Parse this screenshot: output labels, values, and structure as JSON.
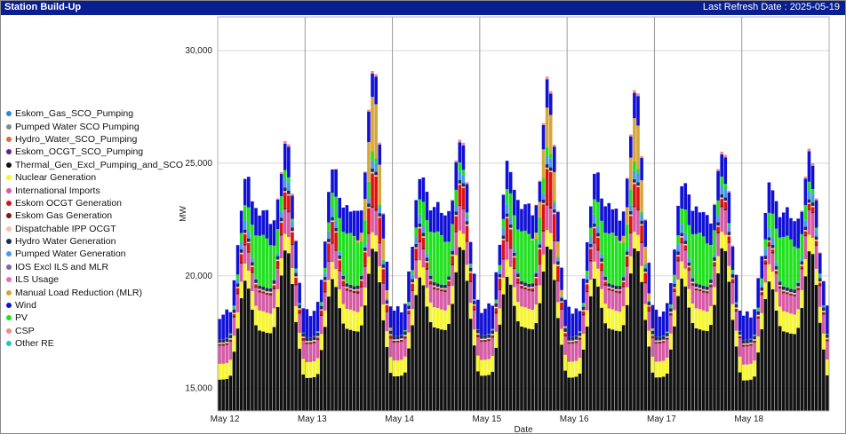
{
  "header": {
    "title": "Station Build-Up",
    "refresh_label": "Last Refresh Date : 2025-05-19"
  },
  "chart_data": {
    "type": "bar",
    "stacked": true,
    "xlabel": "Date",
    "ylabel": "MW",
    "ylim": [
      14000,
      31500
    ],
    "yticks": [
      15000,
      20000,
      25000,
      30000
    ],
    "ytick_labels": [
      "15,000",
      "20,000",
      "25,000",
      "30,000"
    ],
    "day_labels": [
      "May 12",
      "May 13",
      "May 14",
      "May 15",
      "May 16",
      "May 17",
      "May 18"
    ],
    "bars_per_day": 24,
    "grid": true,
    "legend_position": "left",
    "legend": [
      {
        "name": "Eskom_Gas_SCO_Pumping",
        "color": "#2a8ad6"
      },
      {
        "name": "Pumped Water SCO Pumping",
        "color": "#8a8a8a"
      },
      {
        "name": "Hydro_Water_SCO_Pumping",
        "color": "#e06a3a"
      },
      {
        "name": "Eskom_OCGT_SCO_Pumping",
        "color": "#6a1f8a"
      },
      {
        "name": "Thermal_Gen_Excl_Pumping_and_SCO",
        "color": "#111111"
      },
      {
        "name": "Nuclear Generation",
        "color": "#f5f532"
      },
      {
        "name": "International Imports",
        "color": "#d65aa6"
      },
      {
        "name": "Eskom OCGT Generation",
        "color": "#e01010"
      },
      {
        "name": "Eskom Gas Generation",
        "color": "#7a1a1a"
      },
      {
        "name": "Dispatchable IPP OCGT",
        "color": "#f2c2a8"
      },
      {
        "name": "Hydro Water Generation",
        "color": "#1a2a5a"
      },
      {
        "name": "Pumped Water Generation",
        "color": "#4a9ae6"
      },
      {
        "name": "IOS Excl ILS and MLR",
        "color": "#7a6aa6"
      },
      {
        "name": "ILS Usage",
        "color": "#ea6ac6"
      },
      {
        "name": "Manual Load Reduction (MLR)",
        "color": "#d6a63a"
      },
      {
        "name": "Wind",
        "color": "#1010d6"
      },
      {
        "name": "PV",
        "color": "#20e020"
      },
      {
        "name": "CSP",
        "color": "#f08a8a"
      },
      {
        "name": "Other RE",
        "color": "#20c6c6"
      }
    ],
    "series": [
      {
        "name": "Thermal_Gen_Excl_Pumping_and_SCO",
        "color": "#111111",
        "base": 15800,
        "peak": 22000,
        "amp": [
          0.3,
          0.55,
          0.78,
          0.88,
          0.6,
          0.62,
          0.18
        ]
      },
      {
        "name": "Nuclear Generation",
        "color": "#f5f532",
        "values_mw": 800
      },
      {
        "name": "International Imports",
        "color": "#d65aa6",
        "values_mw": 900
      },
      {
        "name": "Eskom OCGT Generation",
        "color": "#e01010",
        "peak_mw": [
          700,
          1500,
          900,
          1600,
          1000,
          300,
          200
        ]
      },
      {
        "name": "Pumped Water Generation",
        "color": "#4a9ae6",
        "peak_mw": 900
      },
      {
        "name": "PV",
        "color": "#20e020",
        "midday_mw": 2200
      },
      {
        "name": "Manual Load Reduction (MLR)",
        "color": "#d6a63a",
        "peak_mw": [
          0,
          2500,
          0,
          1800,
          2000,
          0,
          0
        ]
      },
      {
        "name": "Wind",
        "color": "#1010d6",
        "values_mw": 1400
      }
    ]
  }
}
